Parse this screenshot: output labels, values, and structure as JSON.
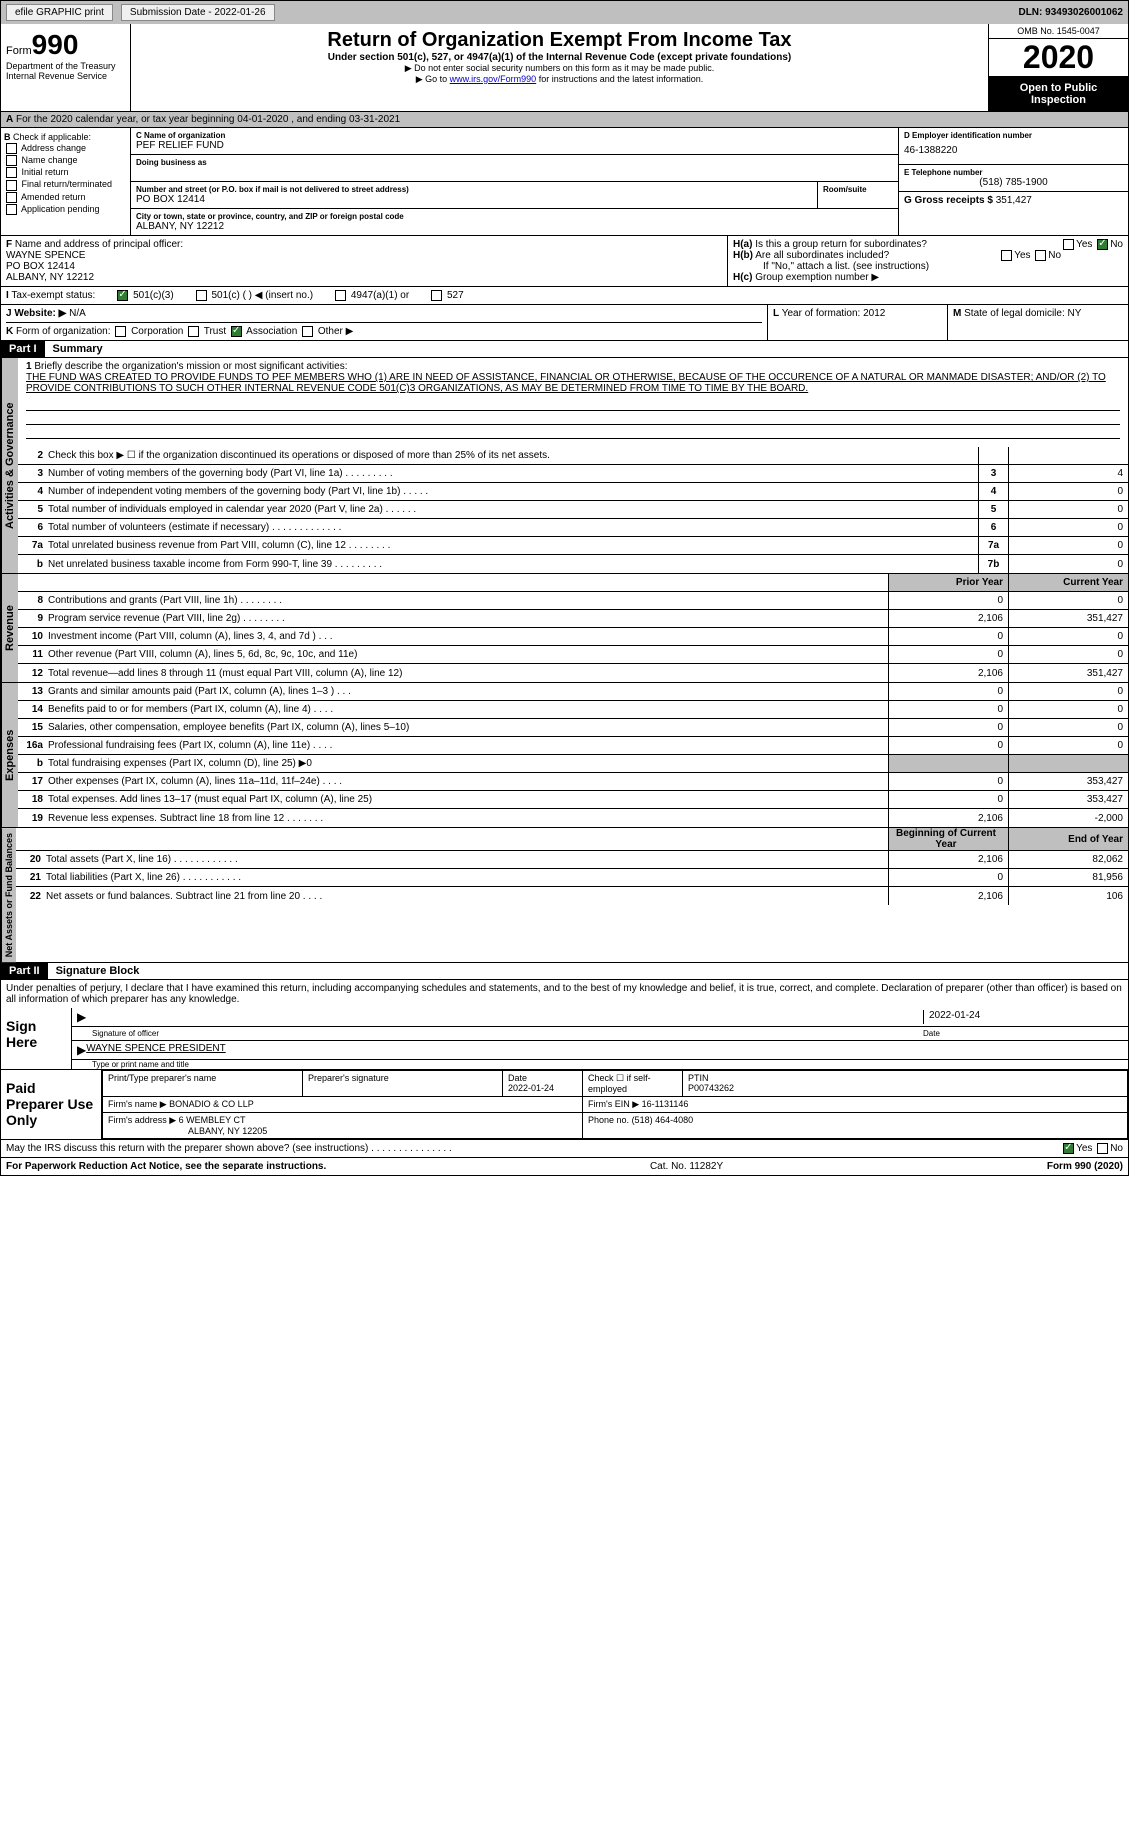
{
  "topbar": {
    "efile": "efile GRAPHIC print",
    "submission": "Submission Date - 2022-01-26",
    "dln": "DLN: 93493026001062"
  },
  "header": {
    "form": "Form",
    "form_num": "990",
    "dept": "Department of the Treasury Internal Revenue Service",
    "title": "Return of Organization Exempt From Income Tax",
    "subtitle": "Under section 501(c), 527, or 4947(a)(1) of the Internal Revenue Code (except private foundations)",
    "note1": "▶ Do not enter social security numbers on this form as it may be made public.",
    "note2_pre": "▶ Go to ",
    "note2_link": "www.irs.gov/Form990",
    "note2_post": " for instructions and the latest information.",
    "omb": "OMB No. 1545-0047",
    "year": "2020",
    "open": "Open to Public Inspection"
  },
  "period": {
    "label_a": "A",
    "text": "For the 2020 calendar year, or tax year beginning 04-01-2020    , and ending 03-31-2021"
  },
  "sectionB": {
    "label": "B",
    "check_label": "Check if applicable:",
    "opts": [
      "Address change",
      "Name change",
      "Initial return",
      "Final return/terminated",
      "Amended return",
      "Application pending"
    ]
  },
  "sectionC": {
    "name_label": "C Name of organization",
    "name": "PEF RELIEF FUND",
    "dba_label": "Doing business as",
    "addr_label": "Number and street (or P.O. box if mail is not delivered to street address)",
    "room_label": "Room/suite",
    "addr": "PO BOX 12414",
    "city_label": "City or town, state or province, country, and ZIP or foreign postal code",
    "city": "ALBANY, NY  12212"
  },
  "sectionD": {
    "ein_label": "D Employer identification number",
    "ein": "46-1388220",
    "tel_label": "E Telephone number",
    "tel": "(518) 785-1900",
    "gross_label": "G Gross receipts $",
    "gross": "351,427"
  },
  "sectionF": {
    "label": "F",
    "text": "Name and address of principal officer:",
    "name": "WAYNE SPENCE",
    "addr1": "PO BOX 12414",
    "addr2": "ALBANY, NY  12212"
  },
  "sectionH": {
    "ha": "H(a)",
    "ha_text": "Is this a group return for subordinates?",
    "hb": "H(b)",
    "hb_text": "Are all subordinates included?",
    "hb_note": "If \"No,\" attach a list. (see instructions)",
    "hc": "H(c)",
    "hc_text": "Group exemption number ▶",
    "yes": "Yes",
    "no": "No"
  },
  "sectionI": {
    "label": "I",
    "text": "Tax-exempt status:",
    "opts": [
      "501(c)(3)",
      "501(c) (  ) ◀ (insert no.)",
      "4947(a)(1) or",
      "527"
    ]
  },
  "sectionJ": {
    "label": "J",
    "text": "Website: ▶",
    "val": "N/A"
  },
  "sectionK": {
    "label": "K",
    "text": "Form of organization:",
    "opts": [
      "Corporation",
      "Trust",
      "Association",
      "Other ▶"
    ]
  },
  "sectionL": {
    "label": "L",
    "text": "Year of formation:",
    "val": "2012"
  },
  "sectionM": {
    "label": "M",
    "text": "State of legal domicile:",
    "val": "NY"
  },
  "part1": {
    "header": "Part I",
    "title": "Summary",
    "line1_label": "1",
    "line1_text": "Briefly describe the organization's mission or most significant activities:",
    "mission": "THE FUND WAS CREATED TO PROVIDE FUNDS TO PEF MEMBERS WHO (1) ARE IN NEED OF ASSISTANCE, FINANCIAL OR OTHERWISE, BECAUSE OF THE OCCURENCE OF A NATURAL OR MANMADE DISASTER; AND/OR (2) TO PROVIDE CONTRIBUTIONS TO SUCH OTHER INTERNAL REVENUE CODE 501(C)3 ORGANIZATIONS, AS MAY BE DETERMINED FROM TIME TO TIME BY THE BOARD.",
    "vert_ag": "Activities & Governance",
    "vert_rev": "Revenue",
    "vert_exp": "Expenses",
    "vert_na": "Net Assets or Fund Balances",
    "prior_year": "Prior Year",
    "current_year": "Current Year",
    "begin_year": "Beginning of Current Year",
    "end_year": "End of Year",
    "lines_ag": [
      {
        "num": "2",
        "text": "Check this box ▶ ☐ if the organization discontinued its operations or disposed of more than 25% of its net assets.",
        "box": "",
        "val": ""
      },
      {
        "num": "3",
        "text": "Number of voting members of the governing body (Part VI, line 1a)   .    .    .    .    .    .    .    .    .",
        "box": "3",
        "val": "4"
      },
      {
        "num": "4",
        "text": "Number of independent voting members of the governing body (Part VI, line 1b)   .    .    .    .    .",
        "box": "4",
        "val": "0"
      },
      {
        "num": "5",
        "text": "Total number of individuals employed in calendar year 2020 (Part V, line 2a)   .    .    .    .    .    .",
        "box": "5",
        "val": "0"
      },
      {
        "num": "6",
        "text": "Total number of volunteers (estimate if necessary)   .    .    .    .    .    .    .    .    .    .    .    .    .",
        "box": "6",
        "val": "0"
      },
      {
        "num": "7a",
        "text": "Total unrelated business revenue from Part VIII, column (C), line 12   .    .    .    .    .    .    .    .",
        "box": "7a",
        "val": "0"
      },
      {
        "num": "b",
        "text": "Net unrelated business taxable income from Form 990-T, line 39   .    .    .    .    .    .    .    .    .",
        "box": "7b",
        "val": "0"
      }
    ],
    "lines_rev": [
      {
        "num": "8",
        "text": "Contributions and grants (Part VIII, line 1h)   .    .    .    .    .    .    .    .",
        "prior": "0",
        "curr": "0"
      },
      {
        "num": "9",
        "text": "Program service revenue (Part VIII, line 2g)   .    .    .    .    .    .    .    .",
        "prior": "2,106",
        "curr": "351,427"
      },
      {
        "num": "10",
        "text": "Investment income (Part VIII, column (A), lines 3, 4, and 7d )   .    .    .",
        "prior": "0",
        "curr": "0"
      },
      {
        "num": "11",
        "text": "Other revenue (Part VIII, column (A), lines 5, 6d, 8c, 9c, 10c, and 11e)",
        "prior": "0",
        "curr": "0"
      },
      {
        "num": "12",
        "text": "Total revenue—add lines 8 through 11 (must equal Part VIII, column (A), line 12)",
        "prior": "2,106",
        "curr": "351,427"
      }
    ],
    "lines_exp": [
      {
        "num": "13",
        "text": "Grants and similar amounts paid (Part IX, column (A), lines 1–3 )   .    .    .",
        "prior": "0",
        "curr": "0"
      },
      {
        "num": "14",
        "text": "Benefits paid to or for members (Part IX, column (A), line 4)   .    .    .    .",
        "prior": "0",
        "curr": "0"
      },
      {
        "num": "15",
        "text": "Salaries, other compensation, employee benefits (Part IX, column (A), lines 5–10)",
        "prior": "0",
        "curr": "0"
      },
      {
        "num": "16a",
        "text": "Professional fundraising fees (Part IX, column (A), line 11e)   .    .    .    .",
        "prior": "0",
        "curr": "0"
      },
      {
        "num": "b",
        "text": "Total fundraising expenses (Part IX, column (D), line 25) ▶0",
        "prior": "",
        "curr": ""
      },
      {
        "num": "17",
        "text": "Other expenses (Part IX, column (A), lines 11a–11d, 11f–24e)   .    .    .    .",
        "prior": "0",
        "curr": "353,427"
      },
      {
        "num": "18",
        "text": "Total expenses. Add lines 13–17 (must equal Part IX, column (A), line 25)",
        "prior": "0",
        "curr": "353,427"
      },
      {
        "num": "19",
        "text": "Revenue less expenses. Subtract line 18 from line 12   .    .    .    .    .    .    .",
        "prior": "2,106",
        "curr": "-2,000"
      }
    ],
    "lines_na": [
      {
        "num": "20",
        "text": "Total assets (Part X, line 16)   .    .    .    .    .    .    .    .    .    .    .    .",
        "prior": "2,106",
        "curr": "82,062"
      },
      {
        "num": "21",
        "text": "Total liabilities (Part X, line 26)   .    .    .    .    .    .    .    .    .    .    .",
        "prior": "0",
        "curr": "81,956"
      },
      {
        "num": "22",
        "text": "Net assets or fund balances. Subtract line 21 from line 20   .    .    .    .",
        "prior": "2,106",
        "curr": "106"
      }
    ]
  },
  "part2": {
    "header": "Part II",
    "title": "Signature Block",
    "declaration": "Under penalties of perjury, I declare that I have examined this return, including accompanying schedules and statements, and to the best of my knowledge and belief, it is true, correct, and complete. Declaration of preparer (other than officer) is based on all information of which preparer has any knowledge.",
    "sign_here": "Sign Here",
    "sig_officer": "Signature of officer",
    "sig_date": "2022-01-24",
    "date_label": "Date",
    "officer_name": "WAYNE SPENCE PRESIDENT",
    "type_name": "Type or print name and title",
    "paid_prep": "Paid Preparer Use Only",
    "print_name": "Print/Type preparer's name",
    "prep_sig": "Preparer's signature",
    "prep_date": "Date",
    "prep_date_val": "2022-01-24",
    "check_self": "Check ☐ if self-employed",
    "ptin_label": "PTIN",
    "ptin": "P00743262",
    "firm_name_label": "Firm's name    ▶",
    "firm_name": "BONADIO & CO LLP",
    "firm_ein_label": "Firm's EIN ▶",
    "firm_ein": "16-1131146",
    "firm_addr_label": "Firm's address ▶",
    "firm_addr": "6 WEMBLEY CT",
    "firm_addr2": "ALBANY, NY  12205",
    "phone_label": "Phone no.",
    "phone": "(518) 464-4080",
    "discuss": "May the IRS discuss this return with the preparer shown above? (see instructions)   .    .    .    .    .    .    .    .    .    .    .    .    .    .    ."
  },
  "footer": {
    "paperwork": "For Paperwork Reduction Act Notice, see the separate instructions.",
    "cat": "Cat. No. 11282Y",
    "form": "Form 990 (2020)"
  }
}
